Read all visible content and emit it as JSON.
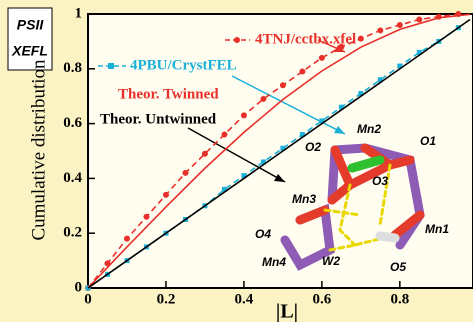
{
  "chart_data": {
    "type": "line",
    "badge": [
      "PSII",
      "XEFL"
    ],
    "x_label": "|L|",
    "y_label": "Cumulative distribution",
    "xlim": [
      0,
      0.98
    ],
    "xticks": [
      0,
      0.2,
      0.4,
      0.6,
      0.8
    ],
    "ylim": [
      0,
      1
    ],
    "yticks": [
      0,
      0.2,
      0.4,
      0.6,
      0.8,
      1
    ],
    "series": [
      {
        "name": "4TNJ/cctbx.xfel",
        "color": "#e8302a",
        "dash": true,
        "marker": "circle",
        "x": [
          0,
          0.05,
          0.1,
          0.15,
          0.2,
          0.25,
          0.3,
          0.35,
          0.4,
          0.45,
          0.5,
          0.55,
          0.6,
          0.65,
          0.7,
          0.75,
          0.8,
          0.85,
          0.9,
          0.95
        ],
        "values": [
          0,
          0.09,
          0.18,
          0.26,
          0.34,
          0.42,
          0.49,
          0.56,
          0.63,
          0.69,
          0.74,
          0.79,
          0.84,
          0.88,
          0.91,
          0.94,
          0.96,
          0.98,
          0.99,
          1
        ]
      },
      {
        "name": "4PBU/CrystFEL",
        "color": "#1ab0d8",
        "dash": true,
        "marker": "square",
        "x": [
          0,
          0.05,
          0.1,
          0.15,
          0.2,
          0.25,
          0.3,
          0.35,
          0.4,
          0.45,
          0.5,
          0.55,
          0.6,
          0.65,
          0.7,
          0.75,
          0.8,
          0.85,
          0.9,
          0.95
        ],
        "values": [
          0,
          0.05,
          0.1,
          0.15,
          0.2,
          0.25,
          0.3,
          0.36,
          0.41,
          0.46,
          0.51,
          0.56,
          0.61,
          0.66,
          0.71,
          0.76,
          0.81,
          0.86,
          0.9,
          0.95
        ]
      },
      {
        "name": "Theor. Twinned",
        "color": "#e8302a",
        "dash": false,
        "marker": "none",
        "x": [
          0,
          0.1,
          0.2,
          0.3,
          0.4,
          0.5,
          0.6,
          0.7,
          0.8,
          0.9,
          0.98
        ],
        "values": [
          0,
          0.15,
          0.296,
          0.437,
          0.568,
          0.688,
          0.792,
          0.879,
          0.944,
          0.986,
          0.999
        ]
      },
      {
        "name": "Theor. Untwinned",
        "color": "#000000",
        "dash": false,
        "marker": "none",
        "x": [
          0,
          0.98
        ],
        "values": [
          0,
          0.98
        ]
      }
    ]
  },
  "inset": {
    "labels": [
      "Mn2",
      "O2",
      "O1",
      "O3",
      "Mn3",
      "O4",
      "Mn1",
      "Mn4",
      "W2",
      "O5"
    ]
  }
}
